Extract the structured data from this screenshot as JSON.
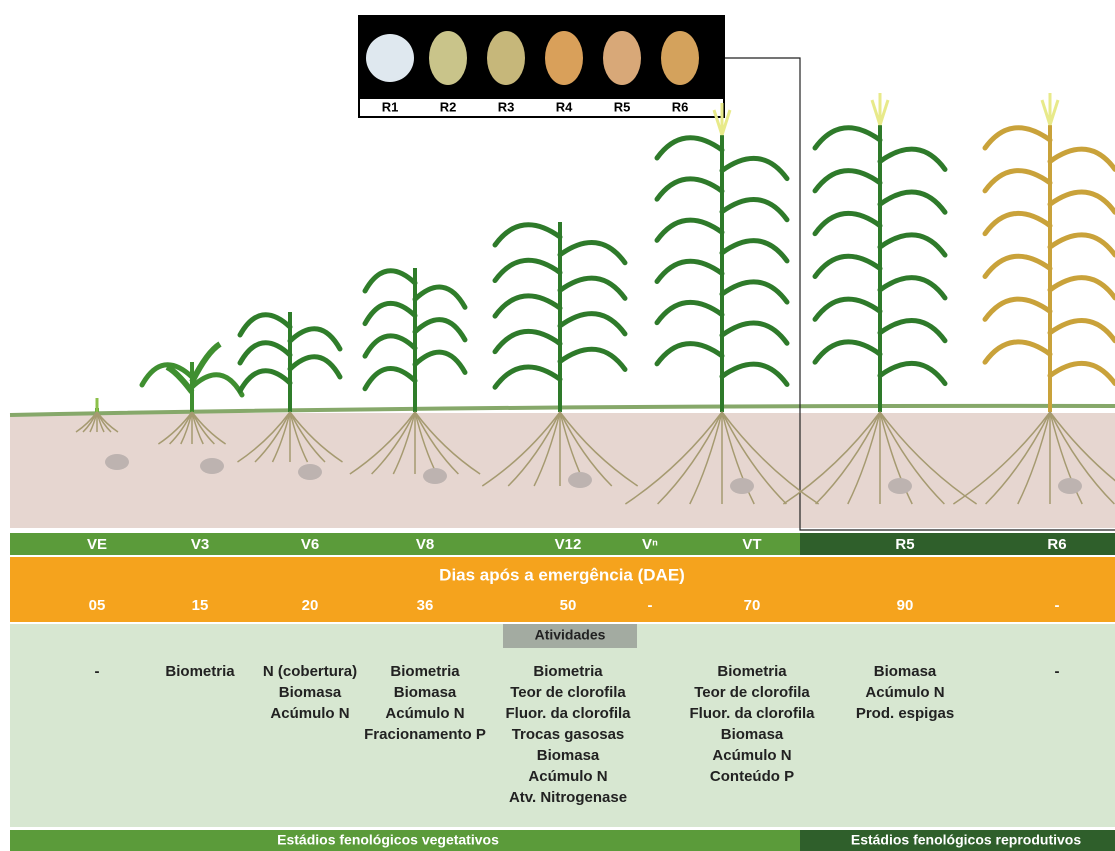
{
  "kernels": [
    "R1",
    "R2",
    "R3",
    "R4",
    "R5",
    "R6"
  ],
  "stages": [
    {
      "label": "VE",
      "days": "05",
      "activities": [
        "-"
      ]
    },
    {
      "label": "V3",
      "days": "15",
      "activities": [
        "Biometria"
      ]
    },
    {
      "label": "V6",
      "days": "20",
      "activities": [
        "N (cobertura)",
        "Biomasa",
        "Acúmulo N"
      ]
    },
    {
      "label": "V8",
      "days": "36",
      "activities": [
        "Biometria",
        "Biomasa",
        "Acúmulo N",
        "Fracionamento P"
      ]
    },
    {
      "label": "V12",
      "days": "50",
      "activities": [
        "Biometria",
        "Teor de clorofila",
        "Fluor. da clorofila",
        "Trocas gasosas",
        "Biomasa",
        "Acúmulo N",
        "Atv. Nitrogenase"
      ]
    },
    {
      "label": "Vⁿ",
      "days": "-",
      "activities": []
    },
    {
      "label": "VT",
      "days": "70",
      "activities": [
        "Biometria",
        "Teor de clorofila",
        "Fluor. da clorofila",
        "Biomasa",
        "Acúmulo N",
        "Conteúdo P"
      ]
    },
    {
      "label": "R5",
      "days": "90",
      "activities": [
        "Biomasa",
        "Acúmulo N",
        "Prod. espigas"
      ]
    },
    {
      "label": "R6",
      "days": "-",
      "activities": [
        "-"
      ]
    }
  ],
  "days_title": "Dias após a emergência (DAE)",
  "activities_title": "Atividades",
  "footer": {
    "vegetative": "Estádios fenológicos vegetativos",
    "reproductive": "Estádios fenológicos reprodutivos"
  }
}
